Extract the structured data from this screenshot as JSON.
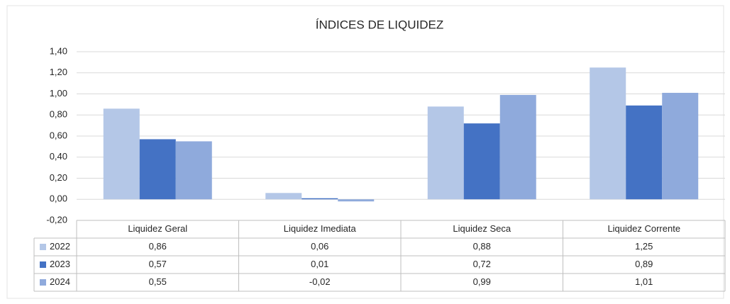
{
  "chart_data": {
    "type": "bar",
    "title": "ÍNDICES DE LIQUIDEZ",
    "categories": [
      "Liquidez Geral",
      "Liquidez Imediata",
      "Liquidez Seca",
      "Liquidez Corrente"
    ],
    "series": [
      {
        "name": "2022",
        "color": "#b4c7e7",
        "values": [
          0.86,
          0.06,
          0.88,
          1.25
        ],
        "value_labels": [
          "0,86",
          "0,06",
          "0,88",
          "1,25"
        ]
      },
      {
        "name": "2023",
        "color": "#4472c4",
        "values": [
          0.57,
          0.01,
          0.72,
          0.89
        ],
        "value_labels": [
          "0,57",
          "0,01",
          "0,72",
          "0,89"
        ]
      },
      {
        "name": "2024",
        "color": "#8faadc",
        "values": [
          0.55,
          -0.02,
          0.99,
          1.01
        ],
        "value_labels": [
          "0,55",
          "-0,02",
          "0,99",
          "1,01"
        ]
      }
    ],
    "ylim": [
      -0.2,
      1.4
    ],
    "yticks": [
      {
        "value": -0.2,
        "label": "-0,20"
      },
      {
        "value": 0,
        "label": "0,00"
      },
      {
        "value": 0.2,
        "label": "0,20"
      },
      {
        "value": 0.4,
        "label": "0,40"
      },
      {
        "value": 0.6,
        "label": "0,60"
      },
      {
        "value": 0.8,
        "label": "0,80"
      },
      {
        "value": 1.0,
        "label": "1,00"
      },
      {
        "value": 1.2,
        "label": "1,20"
      },
      {
        "value": 1.4,
        "label": "1,40"
      }
    ],
    "grid": true
  }
}
